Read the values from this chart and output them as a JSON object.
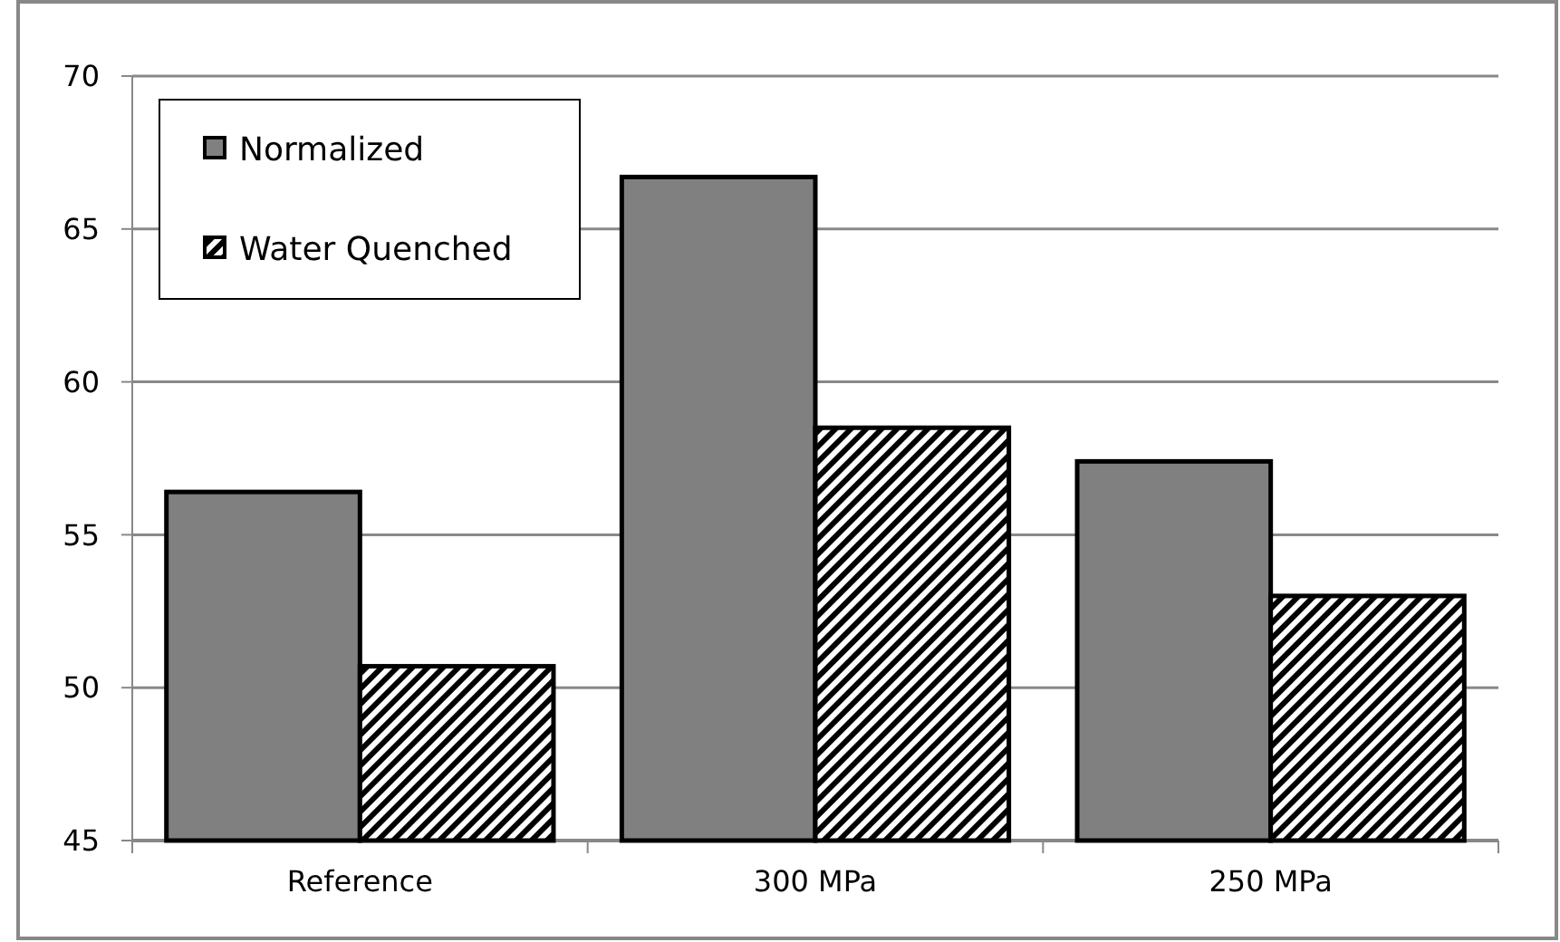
{
  "chart_data": {
    "type": "bar",
    "categories": [
      "Reference",
      "300 MPa",
      "250 MPa"
    ],
    "series": [
      {
        "name": "Normalized",
        "color": "#808080",
        "values": [
          56.4,
          66.7,
          57.4
        ]
      },
      {
        "name": "Water Quenched",
        "color": "#000000",
        "values": [
          50.7,
          58.5,
          53.0
        ]
      }
    ],
    "ylim": [
      45,
      70
    ],
    "yticks": [
      45,
      50,
      55,
      60,
      65,
      70
    ],
    "grid": "y",
    "legend": "top left"
  }
}
